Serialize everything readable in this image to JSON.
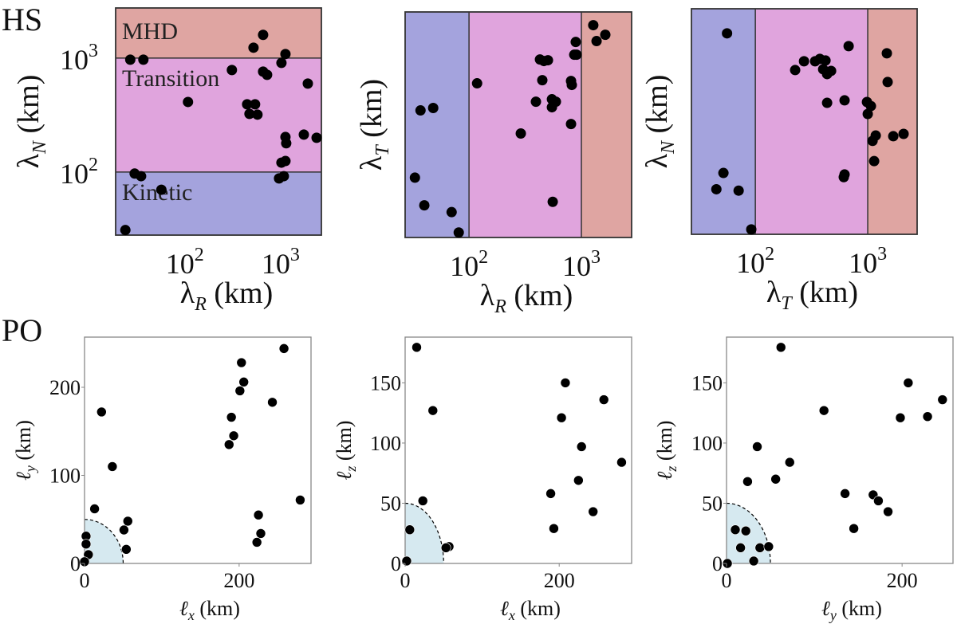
{
  "row_titles": {
    "top": "HS",
    "bottom": "PO"
  },
  "colors": {
    "kinetic": "#a4a3dd",
    "transition": "#e0a4dd",
    "mhd": "#dfa5a2",
    "circle_fill": "#d6e9f0",
    "marker": "#000000"
  },
  "chart_data": [
    {
      "type": "scatter",
      "row": "HS",
      "xscale": "log",
      "yscale": "log",
      "xlabel": {
        "main": "λ",
        "sub": "R",
        "unit": " (km)"
      },
      "ylabel": {
        "main": "λ",
        "sub": "N",
        "unit": " (km)"
      },
      "xlim": [
        19,
        2660
      ],
      "ylim": [
        28,
        2750
      ],
      "xticks": [
        100,
        1000
      ],
      "xtick_labels": [
        {
          "base": "10",
          "exp": "2"
        },
        {
          "base": "10",
          "exp": "3"
        }
      ],
      "yticks": [
        100,
        1000
      ],
      "ytick_labels": [
        {
          "base": "10",
          "exp": "2"
        },
        {
          "base": "10",
          "exp": "3"
        }
      ],
      "regions": {
        "axis": "y",
        "bounds": [
          100,
          1000
        ],
        "labels": [
          "Kinetic",
          "Transition",
          "MHD"
        ]
      },
      "points": [
        [
          27,
          968
        ],
        [
          37,
          968
        ],
        [
          521,
          1233
        ],
        [
          656,
          1597
        ],
        [
          1122,
          1084
        ],
        [
          1019,
          907
        ],
        [
          310,
          785
        ],
        [
          656,
          760
        ],
        [
          722,
          713
        ],
        [
          1920,
          597
        ],
        [
          108,
          412
        ],
        [
          447,
          393
        ],
        [
          541,
          393
        ],
        [
          473,
          324
        ],
        [
          573,
          319
        ],
        [
          1122,
          203
        ],
        [
          1143,
          179
        ],
        [
          1745,
          213
        ],
        [
          2371,
          200
        ],
        [
          1122,
          125
        ],
        [
          1019,
          121
        ],
        [
          962,
          88
        ],
        [
          1079,
          92
        ],
        [
          30,
          97
        ],
        [
          35,
          92
        ],
        [
          57,
          70
        ],
        [
          24,
          31
        ]
      ]
    },
    {
      "type": "scatter",
      "row": "HS",
      "xscale": "log",
      "yscale": "log",
      "xlabel": {
        "main": "λ",
        "sub": "R",
        "unit": " (km)"
      },
      "ylabel": {
        "main": "λ",
        "sub": "T",
        "unit": " (km)"
      },
      "xlim": [
        27,
        2800
      ],
      "ylim": [
        28,
        2800
      ],
      "xticks": [
        100,
        1000
      ],
      "xtick_labels": [
        {
          "base": "10",
          "exp": "2"
        },
        {
          "base": "10",
          "exp": "3"
        }
      ],
      "yticks": [],
      "ytick_labels": [],
      "regions": {
        "axis": "x",
        "bounds": [
          100,
          1000
        ]
      },
      "points": [
        [
          1276,
          2138
        ],
        [
          1633,
          1758
        ],
        [
          1365,
          1545
        ],
        [
          891,
          1517
        ],
        [
          864,
          1169
        ],
        [
          906,
          1169
        ],
        [
          428,
          1061
        ],
        [
          464,
          1028
        ],
        [
          504,
          1045
        ],
        [
          449,
          695
        ],
        [
          809,
          684
        ],
        [
          822,
          631
        ],
        [
          118,
          652
        ],
        [
          394,
          448
        ],
        [
          547,
          471
        ],
        [
          593,
          448
        ],
        [
          547,
          400
        ],
        [
          809,
          284
        ],
        [
          289,
          234
        ],
        [
          37,
          375
        ],
        [
          48,
          394
        ],
        [
          33,
          95
        ],
        [
          40,
          54
        ],
        [
          556,
          58
        ],
        [
          70,
          47
        ],
        [
          81,
          31
        ]
      ]
    },
    {
      "type": "scatter",
      "row": "HS",
      "xscale": "log",
      "yscale": "log",
      "xlabel": {
        "main": "λ",
        "sub": "T",
        "unit": " (km)"
      },
      "ylabel": {
        "main": "λ",
        "sub": "N",
        "unit": " (km)"
      },
      "xlim": [
        27,
        2750
      ],
      "ylim": [
        29,
        2750
      ],
      "xticks": [
        100,
        1000
      ],
      "xtick_labels": [
        {
          "base": "10",
          "exp": "2"
        },
        {
          "base": "10",
          "exp": "3"
        }
      ],
      "yticks": [],
      "ytick_labels": [],
      "regions": {
        "axis": "x",
        "bounds": [
          100,
          1000
        ]
      },
      "points": [
        [
          56,
          1675
        ],
        [
          676,
          1294
        ],
        [
          1479,
          1119
        ],
        [
          271,
          953
        ],
        [
          226,
          798
        ],
        [
          340,
          953
        ],
        [
          375,
          1000
        ],
        [
          421,
          968
        ],
        [
          401,
          811
        ],
        [
          472,
          785
        ],
        [
          435,
          736
        ],
        [
          1503,
          627
        ],
        [
          435,
          412
        ],
        [
          622,
          433
        ],
        [
          984,
          419
        ],
        [
          1067,
          386
        ],
        [
          1000,
          329
        ],
        [
          1178,
          213
        ],
        [
          1104,
          191
        ],
        [
          1687,
          210
        ],
        [
          2084,
          220
        ],
        [
          1140,
          127
        ],
        [
          622,
          97
        ],
        [
          612,
          92
        ],
        [
          52,
          100
        ],
        [
          45,
          72
        ],
        [
          71,
          70
        ],
        [
          92,
          32
        ]
      ]
    },
    {
      "type": "scatter",
      "row": "PO",
      "xscale": "linear",
      "yscale": "linear",
      "xlabel": {
        "main": "ℓ",
        "sub": "x",
        "unit": " (km)"
      },
      "ylabel": {
        "main": "ℓ",
        "sub": "y",
        "unit": " (km)"
      },
      "xlim": [
        0,
        293
      ],
      "ylim": [
        0,
        257
      ],
      "xticks": [
        0,
        200
      ],
      "xtick_labels": [
        "0",
        "200"
      ],
      "yticks": [
        0,
        100,
        200
      ],
      "ytick_labels": [
        "0",
        "100",
        "200"
      ],
      "circle_radius": 50,
      "points": [
        [
          258,
          244
        ],
        [
          203,
          228
        ],
        [
          206,
          206
        ],
        [
          201,
          196
        ],
        [
          243,
          183
        ],
        [
          190,
          166
        ],
        [
          193,
          145
        ],
        [
          187,
          135
        ],
        [
          22,
          172
        ],
        [
          36,
          110
        ],
        [
          13,
          62
        ],
        [
          279,
          72
        ],
        [
          225,
          55
        ],
        [
          228,
          34
        ],
        [
          223,
          24
        ],
        [
          56,
          48
        ],
        [
          51,
          38
        ],
        [
          54,
          16
        ],
        [
          2,
          31
        ],
        [
          2,
          22
        ],
        [
          5,
          10
        ],
        [
          0,
          2
        ]
      ]
    },
    {
      "type": "scatter",
      "row": "PO",
      "xscale": "linear",
      "yscale": "linear",
      "xlabel": {
        "main": "ℓ",
        "sub": "x",
        "unit": " (km)"
      },
      "ylabel": {
        "main": "ℓ",
        "sub": "z",
        "unit": " (km)"
      },
      "xlim": [
        0,
        294
      ],
      "ylim": [
        0,
        188
      ],
      "xticks": [
        0,
        200
      ],
      "xtick_labels": [
        "0",
        "200"
      ],
      "yticks": [
        0,
        50,
        100,
        150
      ],
      "ytick_labels": [
        "0",
        "50",
        "100",
        "150"
      ],
      "circle_radius": 50,
      "points": [
        [
          15,
          179.5
        ],
        [
          208,
          150
        ],
        [
          258,
          136
        ],
        [
          36,
          127
        ],
        [
          203,
          121
        ],
        [
          229,
          97
        ],
        [
          281,
          84
        ],
        [
          225,
          69
        ],
        [
          189,
          58
        ],
        [
          23,
          52
        ],
        [
          244,
          43
        ],
        [
          193,
          29
        ],
        [
          6,
          28
        ],
        [
          57,
          14
        ],
        [
          53,
          13
        ],
        [
          2,
          2
        ]
      ]
    },
    {
      "type": "scatter",
      "row": "PO",
      "xscale": "linear",
      "yscale": "linear",
      "xlabel": {
        "main": "ℓ",
        "sub": "y",
        "unit": " (km)"
      },
      "ylabel": {
        "main": "ℓ",
        "sub": "z",
        "unit": " (km)"
      },
      "xlim": [
        0,
        258
      ],
      "ylim": [
        0,
        188
      ],
      "xticks": [
        0,
        200
      ],
      "xtick_labels": [
        "0",
        "200"
      ],
      "yticks": [
        0,
        50,
        100,
        150
      ],
      "ytick_labels": [
        "0",
        "50",
        "100",
        "150"
      ],
      "circle_radius": 50,
      "points": [
        [
          62,
          179.5
        ],
        [
          207,
          150
        ],
        [
          246,
          136
        ],
        [
          111,
          127
        ],
        [
          198,
          121
        ],
        [
          229,
          122
        ],
        [
          35,
          97
        ],
        [
          72,
          84
        ],
        [
          24,
          68
        ],
        [
          56,
          70
        ],
        [
          135,
          58
        ],
        [
          167,
          57
        ],
        [
          173,
          52
        ],
        [
          184,
          43
        ],
        [
          145,
          29
        ],
        [
          10,
          28
        ],
        [
          22,
          27
        ],
        [
          16,
          13
        ],
        [
          38,
          13
        ],
        [
          48,
          14
        ],
        [
          31,
          2
        ],
        [
          1,
          0
        ]
      ]
    }
  ]
}
